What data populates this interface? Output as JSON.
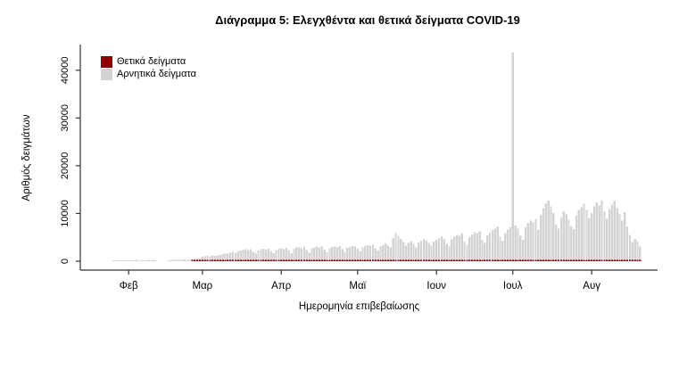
{
  "chart_data": {
    "type": "bar",
    "stacked": true,
    "title": "Διάγραμμα 5: Ελεγχθέντα και θετικά δείγματα COVID-19",
    "xlabel": "Ημερομηνία επιβεβαίωσης",
    "ylabel": "Αριθμός δειγμάτων",
    "ylim": [
      0,
      43500
    ],
    "yticks": [
      0,
      10000,
      20000,
      30000,
      40000
    ],
    "x_tick_labels": [
      "Φεβ",
      "Μαρ",
      "Απρ",
      "Μαϊ",
      "Ιουν",
      "Ιουλ",
      "Αυγ"
    ],
    "x_tick_day_indices": [
      6,
      35,
      66,
      96,
      127,
      157,
      188
    ],
    "grid": false,
    "legend_position": "top-left",
    "legend": [
      {
        "label": "Θετικά δείγματα",
        "color": "#8B0000"
      },
      {
        "label": "Αρνητικά δείγματα",
        "color": "#D3D3D3"
      }
    ],
    "series": [
      {
        "name": "Θετικά δείγματα",
        "color": "#8B0000",
        "values": [
          0,
          0,
          0,
          0,
          0,
          0,
          0,
          0,
          0,
          0,
          0,
          0,
          0,
          0,
          0,
          0,
          0,
          0,
          0,
          0,
          0,
          0,
          0,
          0,
          0,
          0,
          0,
          0,
          0,
          0,
          0,
          10,
          15,
          20,
          25,
          30,
          35,
          40,
          45,
          60,
          70,
          80,
          90,
          100,
          110,
          95,
          120,
          130,
          110,
          140,
          150,
          145,
          160,
          140,
          155,
          130,
          120,
          150,
          160,
          155,
          140,
          150,
          130,
          110,
          140,
          150,
          155,
          140,
          150,
          120,
          100,
          130,
          140,
          150,
          135,
          145,
          110,
          90,
          120,
          130,
          140,
          125,
          135,
          100,
          80,
          110,
          120,
          130,
          115,
          125,
          90,
          70,
          100,
          110,
          120,
          105,
          60,
          50,
          70,
          80,
          85,
          75,
          90,
          55,
          45,
          65,
          75,
          85,
          70,
          90,
          60,
          40,
          70,
          80,
          90,
          95,
          100,
          85,
          55,
          45,
          70,
          80,
          90,
          95,
          85,
          60,
          75,
          40,
          45,
          50,
          45,
          30,
          25,
          40,
          50,
          55,
          50,
          60,
          35,
          30,
          45,
          55,
          60,
          55,
          65,
          40,
          30,
          50,
          60,
          65,
          70,
          75,
          50,
          40,
          60,
          70,
          75,
          50,
          55,
          50,
          40,
          35,
          55,
          65,
          70,
          70,
          75,
          55,
          85,
          100,
          110,
          120,
          110,
          95,
          70,
          65,
          90,
          105,
          100,
          85,
          70,
          65,
          95,
          110,
          120,
          130,
          110,
          95,
          150,
          170,
          190,
          180,
          200,
          160,
          140,
          180,
          200,
          220,
          190,
          170,
          150,
          190,
          230,
          250,
          270,
          240,
          220,
          200
        ]
      },
      {
        "name": "Αρνητικά δείγματα",
        "color": "#D3D3D3",
        "values": [
          150,
          180,
          120,
          200,
          160,
          220,
          180,
          150,
          200,
          250,
          220,
          260,
          200,
          180,
          240,
          210,
          260,
          230,
          0,
          0,
          0,
          0,
          210,
          260,
          300,
          280,
          320,
          260,
          350,
          300,
          380,
          150,
          180,
          220,
          260,
          650,
          720,
          800,
          760,
          880,
          820,
          950,
          1050,
          1200,
          1350,
          1250,
          1500,
          1650,
          1400,
          1750,
          1900,
          2100,
          2200,
          2000,
          2250,
          1700,
          1300,
          1950,
          2200,
          2300,
          2100,
          2350,
          1800,
          1350,
          2050,
          2300,
          2400,
          2250,
          2500,
          1900,
          1400,
          2300,
          2550,
          2600,
          2450,
          2700,
          2000,
          1500,
          2350,
          2600,
          2750,
          2500,
          2800,
          2100,
          1600,
          2400,
          2650,
          2800,
          2600,
          2850,
          2200,
          1700,
          2500,
          2700,
          2900,
          2750,
          2300,
          1800,
          2600,
          2900,
          3100,
          2950,
          3200,
          2400,
          1900,
          2800,
          3100,
          3400,
          3000,
          2600,
          4600,
          5600,
          5000,
          4400,
          3700,
          3000,
          3500,
          3900,
          3300,
          2600,
          3600,
          4000,
          4400,
          4100,
          3500,
          3000,
          3800,
          4200,
          4600,
          4900,
          4400,
          3300,
          2900,
          4300,
          4800,
          5200,
          5000,
          5500,
          3800,
          3200,
          4700,
          5300,
          5800,
          5500,
          6000,
          4200,
          3500,
          5100,
          5700,
          6200,
          6500,
          7000,
          4800,
          3900,
          5600,
          6300,
          6800,
          43400,
          7200,
          6500,
          5000,
          4200,
          6800,
          7600,
          8200,
          7900,
          8600,
          6200,
          9400,
          10800,
          11800,
          12400,
          11200,
          9800,
          7400,
          6500,
          8800,
          10200,
          9600,
          8400,
          7000,
          6400,
          9200,
          10400,
          11000,
          11700,
          10400,
          8800,
          9800,
          11200,
          12000,
          11400,
          12500,
          10200,
          8600,
          10600,
          11600,
          12300,
          10800,
          9600,
          8200,
          10000,
          7000,
          5200,
          3700,
          4400,
          3900,
          2800
        ]
      }
    ]
  }
}
